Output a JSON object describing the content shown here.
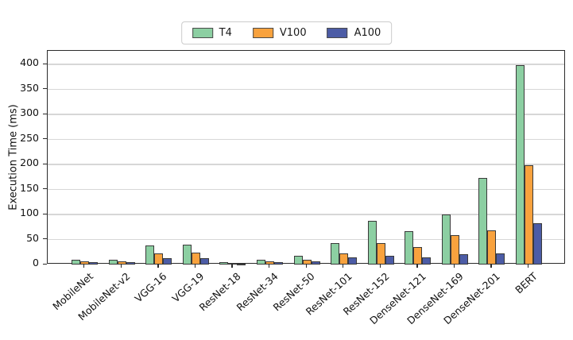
{
  "chart_data": {
    "type": "bar",
    "title": "",
    "xlabel": "",
    "ylabel": "Execution Time (ms)",
    "ylim": [
      0,
      427
    ],
    "yticks": [
      0,
      50,
      100,
      150,
      200,
      250,
      300,
      350,
      400
    ],
    "grid": "horizontal",
    "legend_position": "top-center",
    "categories": [
      "MobileNet",
      "MobileNet-v2",
      "VGG-16",
      "VGG-19",
      "ResNet-18",
      "ResNet-34",
      "ResNet-50",
      "ResNet-101",
      "ResNet-152",
      "DenseNet-121",
      "DenseNet-169",
      "DenseNet-201",
      "BERT"
    ],
    "series": [
      {
        "name": "T4",
        "color": "#8CCFA2",
        "values": [
          10,
          10,
          38,
          40,
          5,
          10,
          17,
          43,
          87,
          67,
          100,
          173,
          398
        ]
      },
      {
        "name": "V100",
        "color": "#F8A23E",
        "values": [
          7,
          6,
          22,
          24,
          3,
          7,
          10,
          23,
          43,
          35,
          58,
          68,
          198
        ]
      },
      {
        "name": "A100",
        "color": "#4C5CA6",
        "values": [
          4,
          4,
          12,
          13,
          2,
          4,
          6,
          14,
          17,
          14,
          20,
          23,
          83
        ]
      }
    ],
    "bar_edge_color": "#3A3A3A",
    "axis_color": "#2B2B2B",
    "grid_color": "#D7D7D7",
    "background_color": "#FFFFFF"
  }
}
